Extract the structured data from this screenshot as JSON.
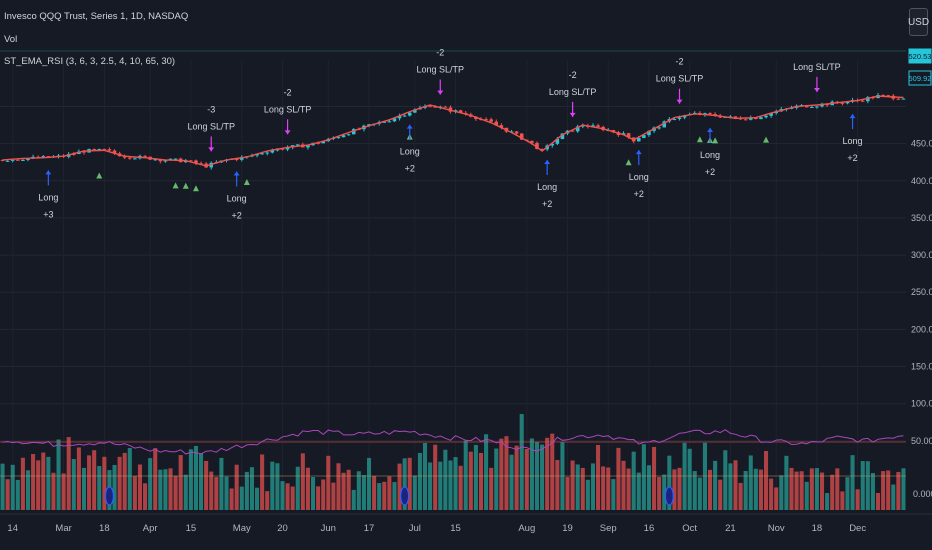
{
  "header": {
    "symbol_line": "Invesco QQQ Trust, Series 1, 1D, NASDAQ",
    "vol_label": "Vol",
    "indicator_label": "ST_EMA_RSI (3, 6, 3, 2.5, 4, 10, 65, 30)",
    "currency_button": "USD"
  },
  "colors": {
    "background": "#161a25",
    "up": "#26c6da",
    "down": "#ef5350",
    "ema": "#ef5350",
    "vol_up": "#26a69a",
    "vol_down": "#ef5350",
    "rsi": "#ab47bc",
    "buy_arrow": "#2962ff",
    "exit_arrow": "#e040fb",
    "triangle": "#66bb6a"
  },
  "chart_data": {
    "type": "candlestick",
    "y_axis": {
      "ticks": [
        50,
        100,
        150,
        200,
        250,
        300,
        350,
        400,
        450
      ],
      "tick_labels": [
        "50.00",
        "100.00",
        "150.00",
        "200.00",
        "250.00",
        "300.00",
        "350.00",
        "400.00",
        "450.00"
      ],
      "zero_label": "0.000",
      "ylim": [
        0,
        520
      ]
    },
    "price_badges": [
      "520.53",
      "509.92"
    ],
    "x_axis": {
      "tick_labels": [
        "14",
        "Mar",
        "18",
        "Apr",
        "15",
        "May",
        "20",
        "Jun",
        "17",
        "Jul",
        "15",
        "Aug",
        "19",
        "Sep",
        "16",
        "Oct",
        "21",
        "Nov",
        "18",
        "Dec"
      ],
      "tick_bar_index": [
        2,
        12,
        20,
        29,
        37,
        47,
        55,
        64,
        72,
        81,
        89,
        103,
        111,
        119,
        127,
        135,
        143,
        152,
        160,
        168
      ]
    },
    "price_anchors": [
      [
        0,
        428
      ],
      [
        4,
        430
      ],
      [
        8,
        431
      ],
      [
        12,
        433
      ],
      [
        16,
        440
      ],
      [
        20,
        441
      ],
      [
        24,
        433
      ],
      [
        28,
        431
      ],
      [
        32,
        428
      ],
      [
        36,
        427
      ],
      [
        40,
        420
      ],
      [
        44,
        428
      ],
      [
        48,
        432
      ],
      [
        52,
        440
      ],
      [
        56,
        445
      ],
      [
        60,
        448
      ],
      [
        64,
        455
      ],
      [
        68,
        465
      ],
      [
        72,
        474
      ],
      [
        76,
        482
      ],
      [
        80,
        493
      ],
      [
        84,
        502
      ],
      [
        88,
        495
      ],
      [
        92,
        488
      ],
      [
        96,
        478
      ],
      [
        100,
        465
      ],
      [
        104,
        450
      ],
      [
        106,
        440
      ],
      [
        110,
        462
      ],
      [
        114,
        475
      ],
      [
        118,
        470
      ],
      [
        122,
        462
      ],
      [
        124,
        455
      ],
      [
        128,
        470
      ],
      [
        132,
        485
      ],
      [
        136,
        490
      ],
      [
        140,
        488
      ],
      [
        144,
        484
      ],
      [
        148,
        485
      ],
      [
        152,
        493
      ],
      [
        156,
        500
      ],
      [
        160,
        502
      ],
      [
        164,
        505
      ],
      [
        168,
        508
      ],
      [
        172,
        514
      ],
      [
        177,
        512
      ]
    ],
    "vol_anchors": [
      [
        0,
        55
      ],
      [
        10,
        60
      ],
      [
        20,
        70
      ],
      [
        30,
        50
      ],
      [
        40,
        55
      ],
      [
        50,
        45
      ],
      [
        60,
        50
      ],
      [
        70,
        48
      ],
      [
        80,
        60
      ],
      [
        90,
        55
      ],
      [
        95,
        70
      ],
      [
        100,
        80
      ],
      [
        104,
        100
      ],
      [
        110,
        60
      ],
      [
        120,
        55
      ],
      [
        130,
        60
      ],
      [
        140,
        55
      ],
      [
        150,
        50
      ],
      [
        160,
        45
      ],
      [
        170,
        40
      ],
      [
        177,
        40
      ]
    ],
    "rsi_anchors": [
      [
        0,
        62
      ],
      [
        10,
        55
      ],
      [
        20,
        58
      ],
      [
        30,
        45
      ],
      [
        40,
        42
      ],
      [
        50,
        58
      ],
      [
        60,
        75
      ],
      [
        70,
        70
      ],
      [
        80,
        75
      ],
      [
        88,
        65
      ],
      [
        96,
        60
      ],
      [
        104,
        45
      ],
      [
        110,
        65
      ],
      [
        118,
        70
      ],
      [
        126,
        55
      ],
      [
        134,
        72
      ],
      [
        142,
        75
      ],
      [
        150,
        60
      ],
      [
        158,
        55
      ],
      [
        164,
        65
      ],
      [
        170,
        60
      ],
      [
        177,
        70
      ]
    ],
    "signals": [
      {
        "kind": "entry",
        "bar": 9,
        "lines": [
          "Long",
          "+3"
        ]
      },
      {
        "kind": "exit",
        "bar": 41,
        "lines": [
          "-3",
          "Long SL/TP"
        ]
      },
      {
        "kind": "entry",
        "bar": 46,
        "lines": [
          "Long",
          "+2"
        ]
      },
      {
        "kind": "exit",
        "bar": 56,
        "lines": [
          "-2",
          "Long SL/TP"
        ]
      },
      {
        "kind": "exit",
        "bar": 86,
        "lines": [
          "-2",
          "Long SL/TP"
        ]
      },
      {
        "kind": "entry",
        "bar": 80,
        "lines": [
          "Long",
          "+2"
        ]
      },
      {
        "kind": "exit",
        "bar": 112,
        "lines": [
          "-2",
          "Long SL/TP"
        ]
      },
      {
        "kind": "entry",
        "bar": 107,
        "lines": [
          "Long",
          "+2"
        ]
      },
      {
        "kind": "entry",
        "bar": 125,
        "lines": [
          "Long",
          "+2"
        ]
      },
      {
        "kind": "exit",
        "bar": 133,
        "lines": [
          "-2",
          "Long SL/TP"
        ]
      },
      {
        "kind": "entry",
        "bar": 139,
        "lines": [
          "Long",
          "+2"
        ]
      },
      {
        "kind": "exit",
        "bar": 160,
        "lines": [
          "Long SL/TP"
        ]
      },
      {
        "kind": "entry",
        "bar": 167,
        "lines": [
          "Long",
          "+2"
        ]
      }
    ],
    "triangle_bars": [
      19,
      34,
      36,
      38,
      48,
      80,
      123,
      137,
      139,
      140,
      150
    ],
    "circle_bars": [
      21,
      79,
      131
    ],
    "grid": true,
    "legend": "top-left"
  }
}
